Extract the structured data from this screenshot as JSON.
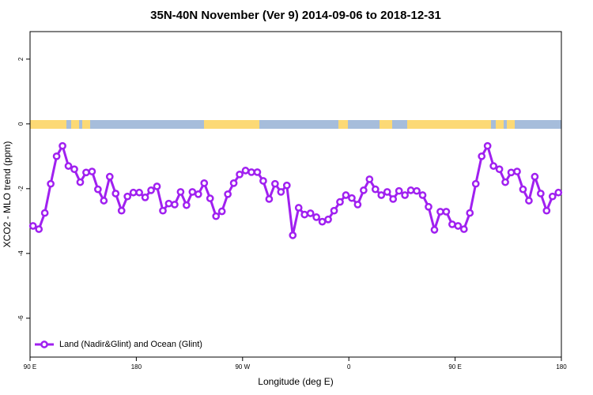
{
  "chart_data": {
    "type": "line",
    "title": "35N-40N November (Ver 9)   2014-09-06 to 2018-12-31",
    "x_label": "Longitude (deg E)",
    "y_label": "XCO2 - MLO trend (ppm)",
    "x": [
      92.5,
      97.5,
      102.5,
      107.5,
      112.5,
      117.5,
      122.5,
      127.5,
      132.5,
      137.5,
      142.5,
      147.5,
      152.5,
      157.5,
      162.5,
      167.5,
      172.5,
      177.5,
      182.5,
      187.5,
      192.5,
      197.5,
      202.5,
      207.5,
      212.5,
      217.5,
      222.5,
      227.5,
      232.5,
      237.5,
      242.5,
      247.5,
      252.5,
      257.5,
      262.5,
      267.5,
      272.5,
      277.5,
      282.5,
      287.5,
      292.5,
      297.5,
      302.5,
      307.5,
      312.5,
      317.5,
      322.5,
      327.5,
      332.5,
      337.5,
      342.5,
      347.5,
      352.5,
      357.5,
      362.5,
      367.5,
      372.5,
      377.5,
      382.5,
      387.5,
      392.5,
      397.5,
      402.5,
      407.5,
      412.5,
      417.5,
      422.5,
      427.5,
      432.5,
      437.5,
      442.5,
      447.5,
      452.5,
      457.5,
      462.5,
      467.5,
      472.5,
      477.5,
      482.5,
      487.5,
      492.5,
      497.5,
      502.5,
      507.5,
      512.5,
      517.5,
      522.5,
      527.5,
      532.5,
      537.5
    ],
    "series": [
      {
        "name": "Land (Nadir&Glint) and Ocean (Glint)",
        "color": "#a020f0",
        "values": [
          -3.15,
          -3.25,
          -2.75,
          -1.85,
          -1.0,
          -0.68,
          -1.3,
          -1.4,
          -1.8,
          -1.5,
          -1.47,
          -2.02,
          -2.37,
          -1.63,
          -2.15,
          -2.68,
          -2.24,
          -2.12,
          -2.12,
          -2.27,
          -2.05,
          -1.93,
          -2.68,
          -2.46,
          -2.49,
          -2.1,
          -2.51,
          -2.1,
          -2.17,
          -1.83,
          -2.3,
          -2.85,
          -2.7,
          -2.17,
          -1.83,
          -1.56,
          -1.44,
          -1.49,
          -1.49,
          -1.76,
          -2.32,
          -1.85,
          -2.1,
          -1.9,
          -3.44,
          -2.59,
          -2.8,
          -2.76,
          -2.88,
          -3.02,
          -2.95,
          -2.68,
          -2.41,
          -2.2,
          -2.29,
          -2.49,
          -2.05,
          -1.71,
          -2.02,
          -2.2,
          -2.1,
          -2.32,
          -2.07,
          -2.2,
          -2.05,
          -2.07,
          -2.2,
          -2.56,
          -3.27,
          -2.71,
          -2.71,
          -3.1,
          -3.15,
          -3.25,
          -2.75,
          -1.85,
          -1.0,
          -0.68,
          -1.3,
          -1.4,
          -1.8,
          -1.5,
          -1.47,
          -2.02,
          -2.37,
          -1.63,
          -2.15,
          -2.68,
          -2.24,
          -2.12
        ]
      }
    ],
    "xlim": [
      90,
      540
    ],
    "xticks": [
      {
        "value": 90,
        "label": "90 E"
      },
      180,
      {
        "value": 270,
        "label": "90 W"
      },
      {
        "value": 360,
        "label": "0"
      },
      {
        "value": 450,
        "label": "90 E"
      },
      180.0
    ],
    "ylim": [
      -7.2,
      2.85
    ],
    "yticks": [
      -6,
      -4,
      -2,
      0,
      2
    ],
    "legend": "bottom-left"
  }
}
